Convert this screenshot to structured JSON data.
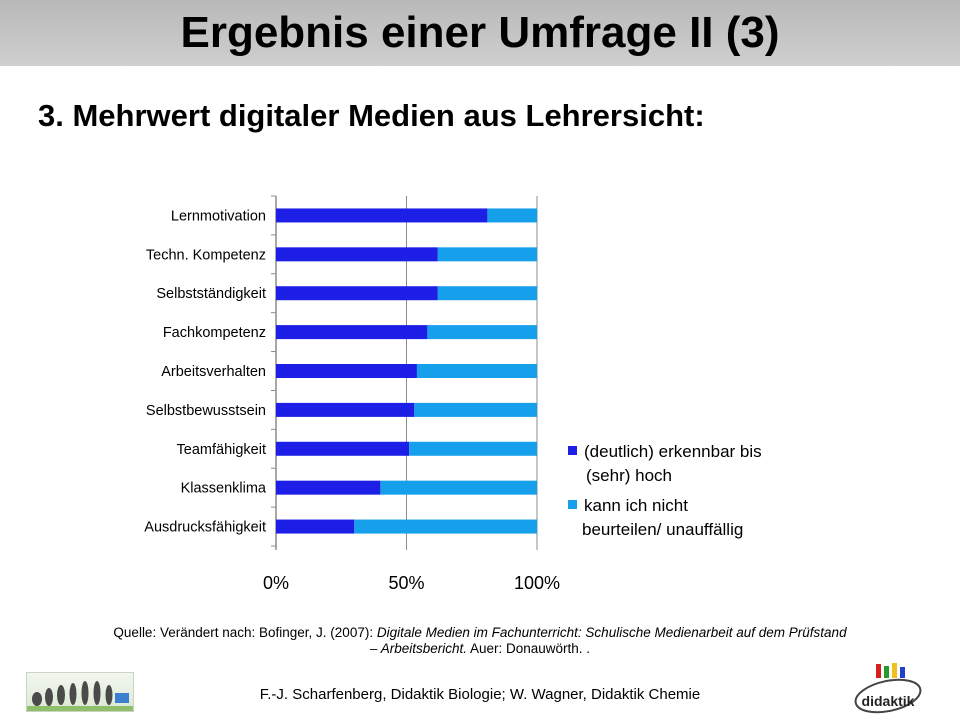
{
  "slide": {
    "title": "Ergebnis einer Umfrage II (3)",
    "subtitle": "3. Mehrwert digitaler Medien aus Lehrersicht:",
    "source_prefix": "Quelle:  Verändert nach: Bofinger, J. (2007): ",
    "source_italic": "Digitale Medien im Fachunterricht: Schulische Medienarbeit auf dem Prüfstand – Arbeitsbericht.",
    "source_suffix": " Auer: Donauwörth. .",
    "footer": "F.-J. Scharfenberg, Didaktik Biologie; W. Wagner, Didaktik Chemie",
    "logo_right_text": "didaktik"
  },
  "colors": {
    "dark_blue": "#1d1ee6",
    "light_blue": "#16a0ec",
    "axis": "#8c8c8c",
    "title_bar": "#c4c4c4"
  },
  "chart_data": {
    "type": "bar",
    "orientation": "horizontal",
    "stacked": true,
    "categories": [
      "Lernmotivation",
      "Techn. Kompetenz",
      "Selbstständigkeit",
      "Fachkompetenz",
      "Arbeitsverhalten",
      "Selbstbewusstsein",
      "Teamfähigkeit",
      "Klassenklima",
      "Ausdrucksfähigkeit"
    ],
    "series": [
      {
        "name": "(deutlich) erkennbar bis (sehr) hoch",
        "color": "#1d1ee6",
        "values": [
          81,
          62,
          62,
          58,
          54,
          53,
          51,
          40,
          30
        ]
      },
      {
        "name": "kann ich nicht beurteilen/ unauffällig",
        "color": "#16a0ec",
        "values": [
          19,
          38,
          38,
          42,
          46,
          47,
          49,
          60,
          70
        ]
      }
    ],
    "legend_lines": [
      [
        "(deutlich) erkennbar bis",
        "(sehr) hoch"
      ],
      [
        "kann ich nicht",
        "beurteilen/ unauffällig"
      ]
    ],
    "xticks": [
      "0%",
      "50%",
      "100%"
    ],
    "xlim": [
      0,
      100
    ],
    "legend_position": "right",
    "grid": "vertical gridlines at 0%, 50%, 100%"
  }
}
